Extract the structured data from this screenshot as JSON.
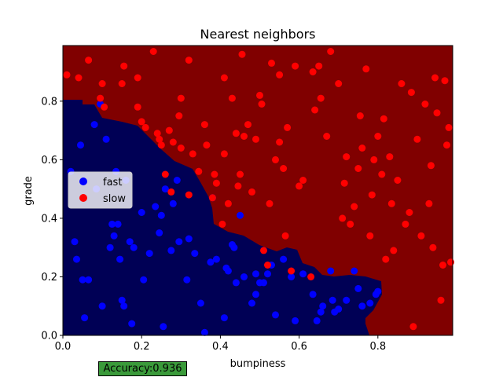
{
  "chart_data": {
    "type": "scatter",
    "title": "Nearest neighbors",
    "xlabel": "bumpiness",
    "ylabel": "grade",
    "xlim": [
      0,
      0.99
    ],
    "ylim": [
      0,
      0.99
    ],
    "xticks": [
      "0.0",
      "0.2",
      "0.4",
      "0.6",
      "0.8"
    ],
    "yticks": [
      "0.0",
      "0.2",
      "0.4",
      "0.6",
      "0.8"
    ],
    "legend_position": "center-left",
    "grid": false,
    "background_colors": {
      "fast_region": "#000055",
      "slow_region": "#800000"
    },
    "series": [
      {
        "name": "fast",
        "color": "#0000ff",
        "points": [
          [
            0.02,
            0.56
          ],
          [
            0.03,
            0.32
          ],
          [
            0.035,
            0.26
          ],
          [
            0.045,
            0.65
          ],
          [
            0.05,
            0.19
          ],
          [
            0.055,
            0.06
          ],
          [
            0.065,
            0.19
          ],
          [
            0.08,
            0.72
          ],
          [
            0.085,
            0.5
          ],
          [
            0.095,
            0.79
          ],
          [
            0.1,
            0.1
          ],
          [
            0.11,
            0.67
          ],
          [
            0.12,
            0.3
          ],
          [
            0.125,
            0.38
          ],
          [
            0.13,
            0.34
          ],
          [
            0.135,
            0.56
          ],
          [
            0.14,
            0.38
          ],
          [
            0.145,
            0.26
          ],
          [
            0.15,
            0.12
          ],
          [
            0.155,
            0.1
          ],
          [
            0.16,
            0.53
          ],
          [
            0.17,
            0.32
          ],
          [
            0.175,
            0.04
          ],
          [
            0.18,
            0.3
          ],
          [
            0.2,
            0.42
          ],
          [
            0.205,
            0.19
          ],
          [
            0.22,
            0.28
          ],
          [
            0.235,
            0.44
          ],
          [
            0.245,
            0.35
          ],
          [
            0.25,
            0.41
          ],
          [
            0.255,
            0.03
          ],
          [
            0.26,
            0.5
          ],
          [
            0.275,
            0.29
          ],
          [
            0.28,
            0.45
          ],
          [
            0.29,
            0.53
          ],
          [
            0.295,
            0.32
          ],
          [
            0.315,
            0.19
          ],
          [
            0.32,
            0.33
          ],
          [
            0.335,
            0.28
          ],
          [
            0.35,
            0.11
          ],
          [
            0.36,
            0.01
          ],
          [
            0.375,
            0.25
          ],
          [
            0.38,
            0.47
          ],
          [
            0.39,
            0.26
          ],
          [
            0.41,
            0.06
          ],
          [
            0.415,
            0.23
          ],
          [
            0.42,
            0.22
          ],
          [
            0.43,
            0.31
          ],
          [
            0.435,
            0.3
          ],
          [
            0.44,
            0.18
          ],
          [
            0.45,
            0.41
          ],
          [
            0.46,
            0.2
          ],
          [
            0.48,
            0.11
          ],
          [
            0.49,
            0.14
          ],
          [
            0.49,
            0.21
          ],
          [
            0.5,
            0.18
          ],
          [
            0.51,
            0.18
          ],
          [
            0.52,
            0.21
          ],
          [
            0.53,
            0.24
          ],
          [
            0.54,
            0.07
          ],
          [
            0.56,
            0.26
          ],
          [
            0.58,
            0.2
          ],
          [
            0.59,
            0.05
          ],
          [
            0.61,
            0.21
          ],
          [
            0.635,
            0.14
          ],
          [
            0.645,
            0.05
          ],
          [
            0.655,
            0.08
          ],
          [
            0.66,
            0.1
          ],
          [
            0.68,
            0.22
          ],
          [
            0.685,
            0.12
          ],
          [
            0.69,
            0.08
          ],
          [
            0.7,
            0.09
          ],
          [
            0.72,
            0.12
          ],
          [
            0.74,
            0.22
          ],
          [
            0.75,
            0.16
          ],
          [
            0.76,
            0.1
          ],
          [
            0.78,
            0.11
          ],
          [
            0.795,
            0.14
          ],
          [
            0.8,
            0.15
          ]
        ]
      },
      {
        "name": "slow",
        "color": "#ff0000",
        "points": [
          [
            0.01,
            0.89
          ],
          [
            0.04,
            0.88
          ],
          [
            0.065,
            0.94
          ],
          [
            0.095,
            0.81
          ],
          [
            0.1,
            0.86
          ],
          [
            0.105,
            0.78
          ],
          [
            0.15,
            0.86
          ],
          [
            0.155,
            0.92
          ],
          [
            0.19,
            0.88
          ],
          [
            0.19,
            0.78
          ],
          [
            0.2,
            0.73
          ],
          [
            0.21,
            0.71
          ],
          [
            0.23,
            0.97
          ],
          [
            0.24,
            0.69
          ],
          [
            0.245,
            0.67
          ],
          [
            0.25,
            0.65
          ],
          [
            0.26,
            0.55
          ],
          [
            0.27,
            0.7
          ],
          [
            0.275,
            0.49
          ],
          [
            0.28,
            0.66
          ],
          [
            0.295,
            0.75
          ],
          [
            0.3,
            0.64
          ],
          [
            0.3,
            0.81
          ],
          [
            0.32,
            0.94
          ],
          [
            0.32,
            0.48
          ],
          [
            0.33,
            0.62
          ],
          [
            0.345,
            0.56
          ],
          [
            0.36,
            0.72
          ],
          [
            0.365,
            0.65
          ],
          [
            0.38,
            0.47
          ],
          [
            0.385,
            0.55
          ],
          [
            0.39,
            0.52
          ],
          [
            0.405,
            0.38
          ],
          [
            0.41,
            0.88
          ],
          [
            0.41,
            0.62
          ],
          [
            0.42,
            0.45
          ],
          [
            0.43,
            0.81
          ],
          [
            0.44,
            0.69
          ],
          [
            0.445,
            0.51
          ],
          [
            0.45,
            0.55
          ],
          [
            0.455,
            0.96
          ],
          [
            0.46,
            0.68
          ],
          [
            0.47,
            0.72
          ],
          [
            0.48,
            0.49
          ],
          [
            0.49,
            0.67
          ],
          [
            0.5,
            0.82
          ],
          [
            0.505,
            0.79
          ],
          [
            0.51,
            0.29
          ],
          [
            0.52,
            0.24
          ],
          [
            0.525,
            0.45
          ],
          [
            0.53,
            0.93
          ],
          [
            0.54,
            0.6
          ],
          [
            0.55,
            0.89
          ],
          [
            0.55,
            0.66
          ],
          [
            0.56,
            0.57
          ],
          [
            0.565,
            0.34
          ],
          [
            0.57,
            0.71
          ],
          [
            0.58,
            0.22
          ],
          [
            0.59,
            0.92
          ],
          [
            0.6,
            0.51
          ],
          [
            0.61,
            0.53
          ],
          [
            0.63,
            0.2
          ],
          [
            0.635,
            0.9
          ],
          [
            0.64,
            0.77
          ],
          [
            0.65,
            0.92
          ],
          [
            0.655,
            0.81
          ],
          [
            0.67,
            0.68
          ],
          [
            0.68,
            0.97
          ],
          [
            0.7,
            0.86
          ],
          [
            0.71,
            0.4
          ],
          [
            0.715,
            0.52
          ],
          [
            0.72,
            0.61
          ],
          [
            0.73,
            0.38
          ],
          [
            0.74,
            0.44
          ],
          [
            0.75,
            0.57
          ],
          [
            0.755,
            0.75
          ],
          [
            0.76,
            0.64
          ],
          [
            0.77,
            0.91
          ],
          [
            0.78,
            0.34
          ],
          [
            0.785,
            0.48
          ],
          [
            0.79,
            0.6
          ],
          [
            0.8,
            0.68
          ],
          [
            0.81,
            0.55
          ],
          [
            0.815,
            0.74
          ],
          [
            0.82,
            0.26
          ],
          [
            0.83,
            0.61
          ],
          [
            0.835,
            0.45
          ],
          [
            0.84,
            0.29
          ],
          [
            0.85,
            0.53
          ],
          [
            0.86,
            0.86
          ],
          [
            0.87,
            0.38
          ],
          [
            0.88,
            0.42
          ],
          [
            0.885,
            0.83
          ],
          [
            0.89,
            0.03
          ],
          [
            0.9,
            0.67
          ],
          [
            0.91,
            0.34
          ],
          [
            0.92,
            0.79
          ],
          [
            0.93,
            0.45
          ],
          [
            0.935,
            0.58
          ],
          [
            0.94,
            0.3
          ],
          [
            0.945,
            0.88
          ],
          [
            0.95,
            0.76
          ],
          [
            0.96,
            0.12
          ],
          [
            0.965,
            0.24
          ],
          [
            0.97,
            0.87
          ],
          [
            0.975,
            0.65
          ],
          [
            0.98,
            0.71
          ],
          [
            0.985,
            0.25
          ]
        ]
      }
    ]
  },
  "accuracy": {
    "label": "Accuracy:0.936"
  }
}
